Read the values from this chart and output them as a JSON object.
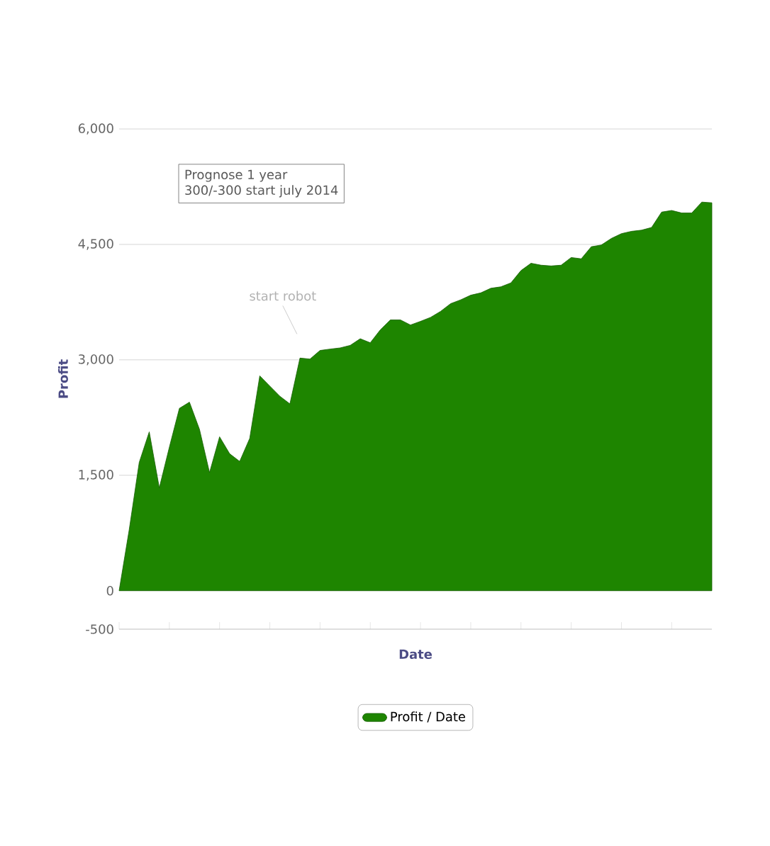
{
  "chart_data": {
    "type": "area",
    "xlabel": "Date",
    "ylabel": "Profit",
    "categories": [
      null,
      null,
      null,
      null,
      null,
      null,
      null,
      null,
      null,
      null,
      null,
      null,
      null,
      null,
      null,
      null,
      null,
      null,
      null,
      null,
      null,
      null,
      null,
      null,
      null,
      null,
      null,
      null,
      null,
      null,
      null,
      null,
      null,
      null,
      null,
      null,
      null,
      null,
      null,
      null,
      null,
      null,
      null,
      null,
      null,
      null,
      null,
      null,
      null,
      null,
      null,
      null,
      null,
      null,
      null,
      null,
      null,
      null,
      null,
      null
    ],
    "series": [
      {
        "name": "Profit / Date",
        "color": "#1e8500",
        "values": [
          0,
          790,
          1667,
          2064,
          1336,
          1865,
          2370,
          2450,
          2097,
          1535,
          2000,
          1780,
          1680,
          1980,
          2792,
          2659,
          2527,
          2428,
          3023,
          3010,
          3122,
          3140,
          3155,
          3188,
          3274,
          3222,
          3390,
          3519,
          3519,
          3453,
          3500,
          3552,
          3630,
          3730,
          3780,
          3840,
          3870,
          3930,
          3949,
          4000,
          4160,
          4255,
          4230,
          4220,
          4230,
          4330,
          4313,
          4470,
          4492,
          4578,
          4640,
          4670,
          4685,
          4720,
          4920,
          4941,
          4908,
          4908,
          5050,
          5041
        ]
      }
    ],
    "ylim": [
      -500,
      6000
    ],
    "yticks": [
      {
        "value": -500,
        "label": "-500"
      },
      {
        "value": 0,
        "label": "0"
      },
      {
        "value": 1500,
        "label": "1,500"
      },
      {
        "value": 3000,
        "label": "3,000"
      },
      {
        "value": 4500,
        "label": "4,500"
      },
      {
        "value": 6000,
        "label": "6,000"
      }
    ],
    "tick_labels": "y",
    "grid": "y",
    "legend": "bottom",
    "marker": "none",
    "annotations": [
      "Prognose 1 year",
      "300/-300 start july 2014",
      "start robot"
    ]
  }
}
